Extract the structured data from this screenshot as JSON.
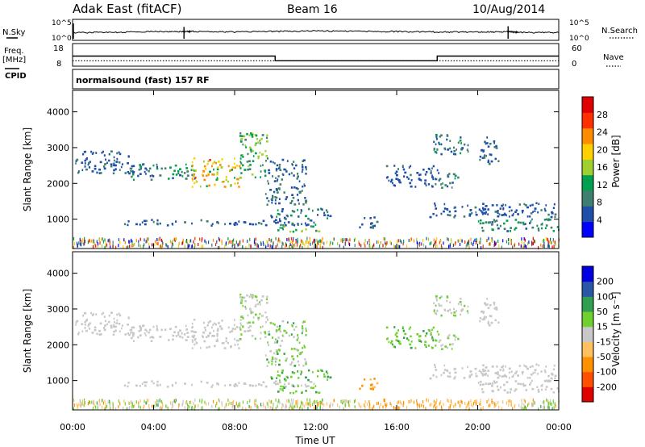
{
  "header": {
    "station": "Adak East (fitACF)",
    "beam": "Beam 16",
    "date": "10/Aug/2014"
  },
  "side_labels": {
    "nsky": "N.Sky",
    "freq": "Freq.",
    "freq_unit": "[MHz]",
    "cpid": "CPID",
    "nsearch": "N.Search",
    "nave": "Nave"
  },
  "cpid_text": "normalsound (fast) 157 RF",
  "colors": {
    "power": [
      "#0000ff",
      "#1f4fa8",
      "#3f7f6f",
      "#00a050",
      "#a0d030",
      "#ffd000",
      "#ff8c00",
      "#ff3000",
      "#e00000"
    ],
    "velocity": [
      "#e00000",
      "#ff5000",
      "#ff9000",
      "#ffc060",
      "#c8c8c8",
      "#70d030",
      "#30a050",
      "#2a56a8",
      "#0000e0"
    ]
  },
  "chart_data": [
    {
      "type": "line",
      "name": "nsky-nsearch-panel",
      "left_ticks": [
        "10^5",
        "10^0"
      ],
      "right_ticks": [
        "10^5",
        "10^0"
      ],
      "x": [
        0,
        2,
        4,
        5.5,
        6,
        8,
        10,
        12,
        14,
        16,
        18,
        20,
        21.5,
        22,
        24
      ],
      "nsky": [
        60,
        80,
        120,
        3000,
        150,
        100,
        150,
        200,
        160,
        130,
        100,
        90,
        5000,
        80,
        70
      ]
    },
    {
      "type": "line",
      "name": "freq-nave-panel",
      "left_ticks": [
        "18",
        "8"
      ],
      "right_ticks": [
        "60",
        "0"
      ],
      "freq_steps": [
        {
          "start": 0,
          "end": 10,
          "value": 13.5
        },
        {
          "start": 10,
          "end": 18,
          "value": 10.5
        },
        {
          "start": 18,
          "end": 24,
          "value": 13.5
        }
      ],
      "nave": 9
    },
    {
      "type": "heatmap",
      "name": "power-panel",
      "ylabel": "Slant Range [km]",
      "ylim": [
        180,
        4600
      ],
      "xlim": [
        0,
        24
      ],
      "yticks": [
        1000,
        2000,
        3000,
        4000
      ],
      "colorbar": {
        "label": "Power [dB]",
        "ticks": [
          4,
          8,
          12,
          16,
          20,
          24,
          28
        ],
        "min": 0,
        "max": 32
      }
    },
    {
      "type": "heatmap",
      "name": "velocity-panel",
      "ylabel": "Slant Range [km]",
      "ylim": [
        180,
        4600
      ],
      "xlim": [
        0,
        24
      ],
      "yticks": [
        1000,
        2000,
        3000,
        4000
      ],
      "xticks": [
        "00:00",
        "04:00",
        "08:00",
        "12:00",
        "16:00",
        "20:00",
        "00:00"
      ],
      "xlabel": "Time UT",
      "colorbar": {
        "label": "Velocity [m s⁻¹]",
        "ticks": [
          200,
          100,
          50,
          15,
          -15,
          -50,
          -100,
          -200
        ]
      }
    }
  ],
  "echo_regions": [
    {
      "t0": 0.1,
      "t1": 3.0,
      "r0": 2250,
      "r1": 2900,
      "power": [
        4,
        8
      ],
      "vel": [
        -14,
        14
      ]
    },
    {
      "t0": 2.8,
      "t1": 6.0,
      "r0": 2100,
      "r1": 2550,
      "power": [
        5,
        14
      ],
      "vel": [
        -14,
        14
      ]
    },
    {
      "t0": 5.8,
      "t1": 8.3,
      "r0": 1900,
      "r1": 2700,
      "power": [
        12,
        26
      ],
      "vel": [
        -14,
        14
      ]
    },
    {
      "t0": 8.2,
      "t1": 9.6,
      "r0": 2100,
      "r1": 3400,
      "power": [
        8,
        18
      ],
      "vel": [
        -14,
        40
      ]
    },
    {
      "t0": 9.5,
      "t1": 11.5,
      "r0": 1400,
      "r1": 2700,
      "power": [
        4,
        10
      ],
      "vel": [
        -14,
        60
      ]
    },
    {
      "t0": 2.5,
      "t1": 12.3,
      "r0": 820,
      "r1": 980,
      "power": [
        4,
        8
      ],
      "vel": [
        -14,
        14
      ]
    },
    {
      "t0": 9.7,
      "t1": 12.8,
      "r0": 1000,
      "r1": 1300,
      "power": [
        5,
        12
      ],
      "vel": [
        20,
        80
      ]
    },
    {
      "t0": 9.8,
      "t1": 12.3,
      "r0": 650,
      "r1": 850,
      "power": [
        8,
        16
      ],
      "vel": [
        20,
        80
      ]
    },
    {
      "t0": 14.0,
      "t1": 15.0,
      "r0": 750,
      "r1": 1050,
      "power": [
        4,
        8
      ],
      "vel": [
        -90,
        -30
      ]
    },
    {
      "t0": 15.4,
      "t1": 18.0,
      "r0": 1900,
      "r1": 2500,
      "power": [
        4,
        8
      ],
      "vel": [
        15,
        60
      ]
    },
    {
      "t0": 17.8,
      "t1": 19.6,
      "r0": 2800,
      "r1": 3400,
      "power": [
        4,
        12
      ],
      "vel": [
        -14,
        30
      ]
    },
    {
      "t0": 18.0,
      "t1": 19.0,
      "r0": 1850,
      "r1": 2300,
      "power": [
        4,
        14
      ],
      "vel": [
        -14,
        40
      ]
    },
    {
      "t0": 20.0,
      "t1": 21.0,
      "r0": 2500,
      "r1": 3300,
      "power": [
        4,
        10
      ],
      "vel": [
        -14,
        14
      ]
    },
    {
      "t0": 17.5,
      "t1": 24.0,
      "r0": 1050,
      "r1": 1450,
      "power": [
        4,
        8
      ],
      "vel": [
        -14,
        14
      ]
    },
    {
      "t0": 20.0,
      "t1": 24.0,
      "r0": 650,
      "r1": 1000,
      "power": [
        6,
        14
      ],
      "vel": [
        -14,
        14
      ]
    }
  ]
}
